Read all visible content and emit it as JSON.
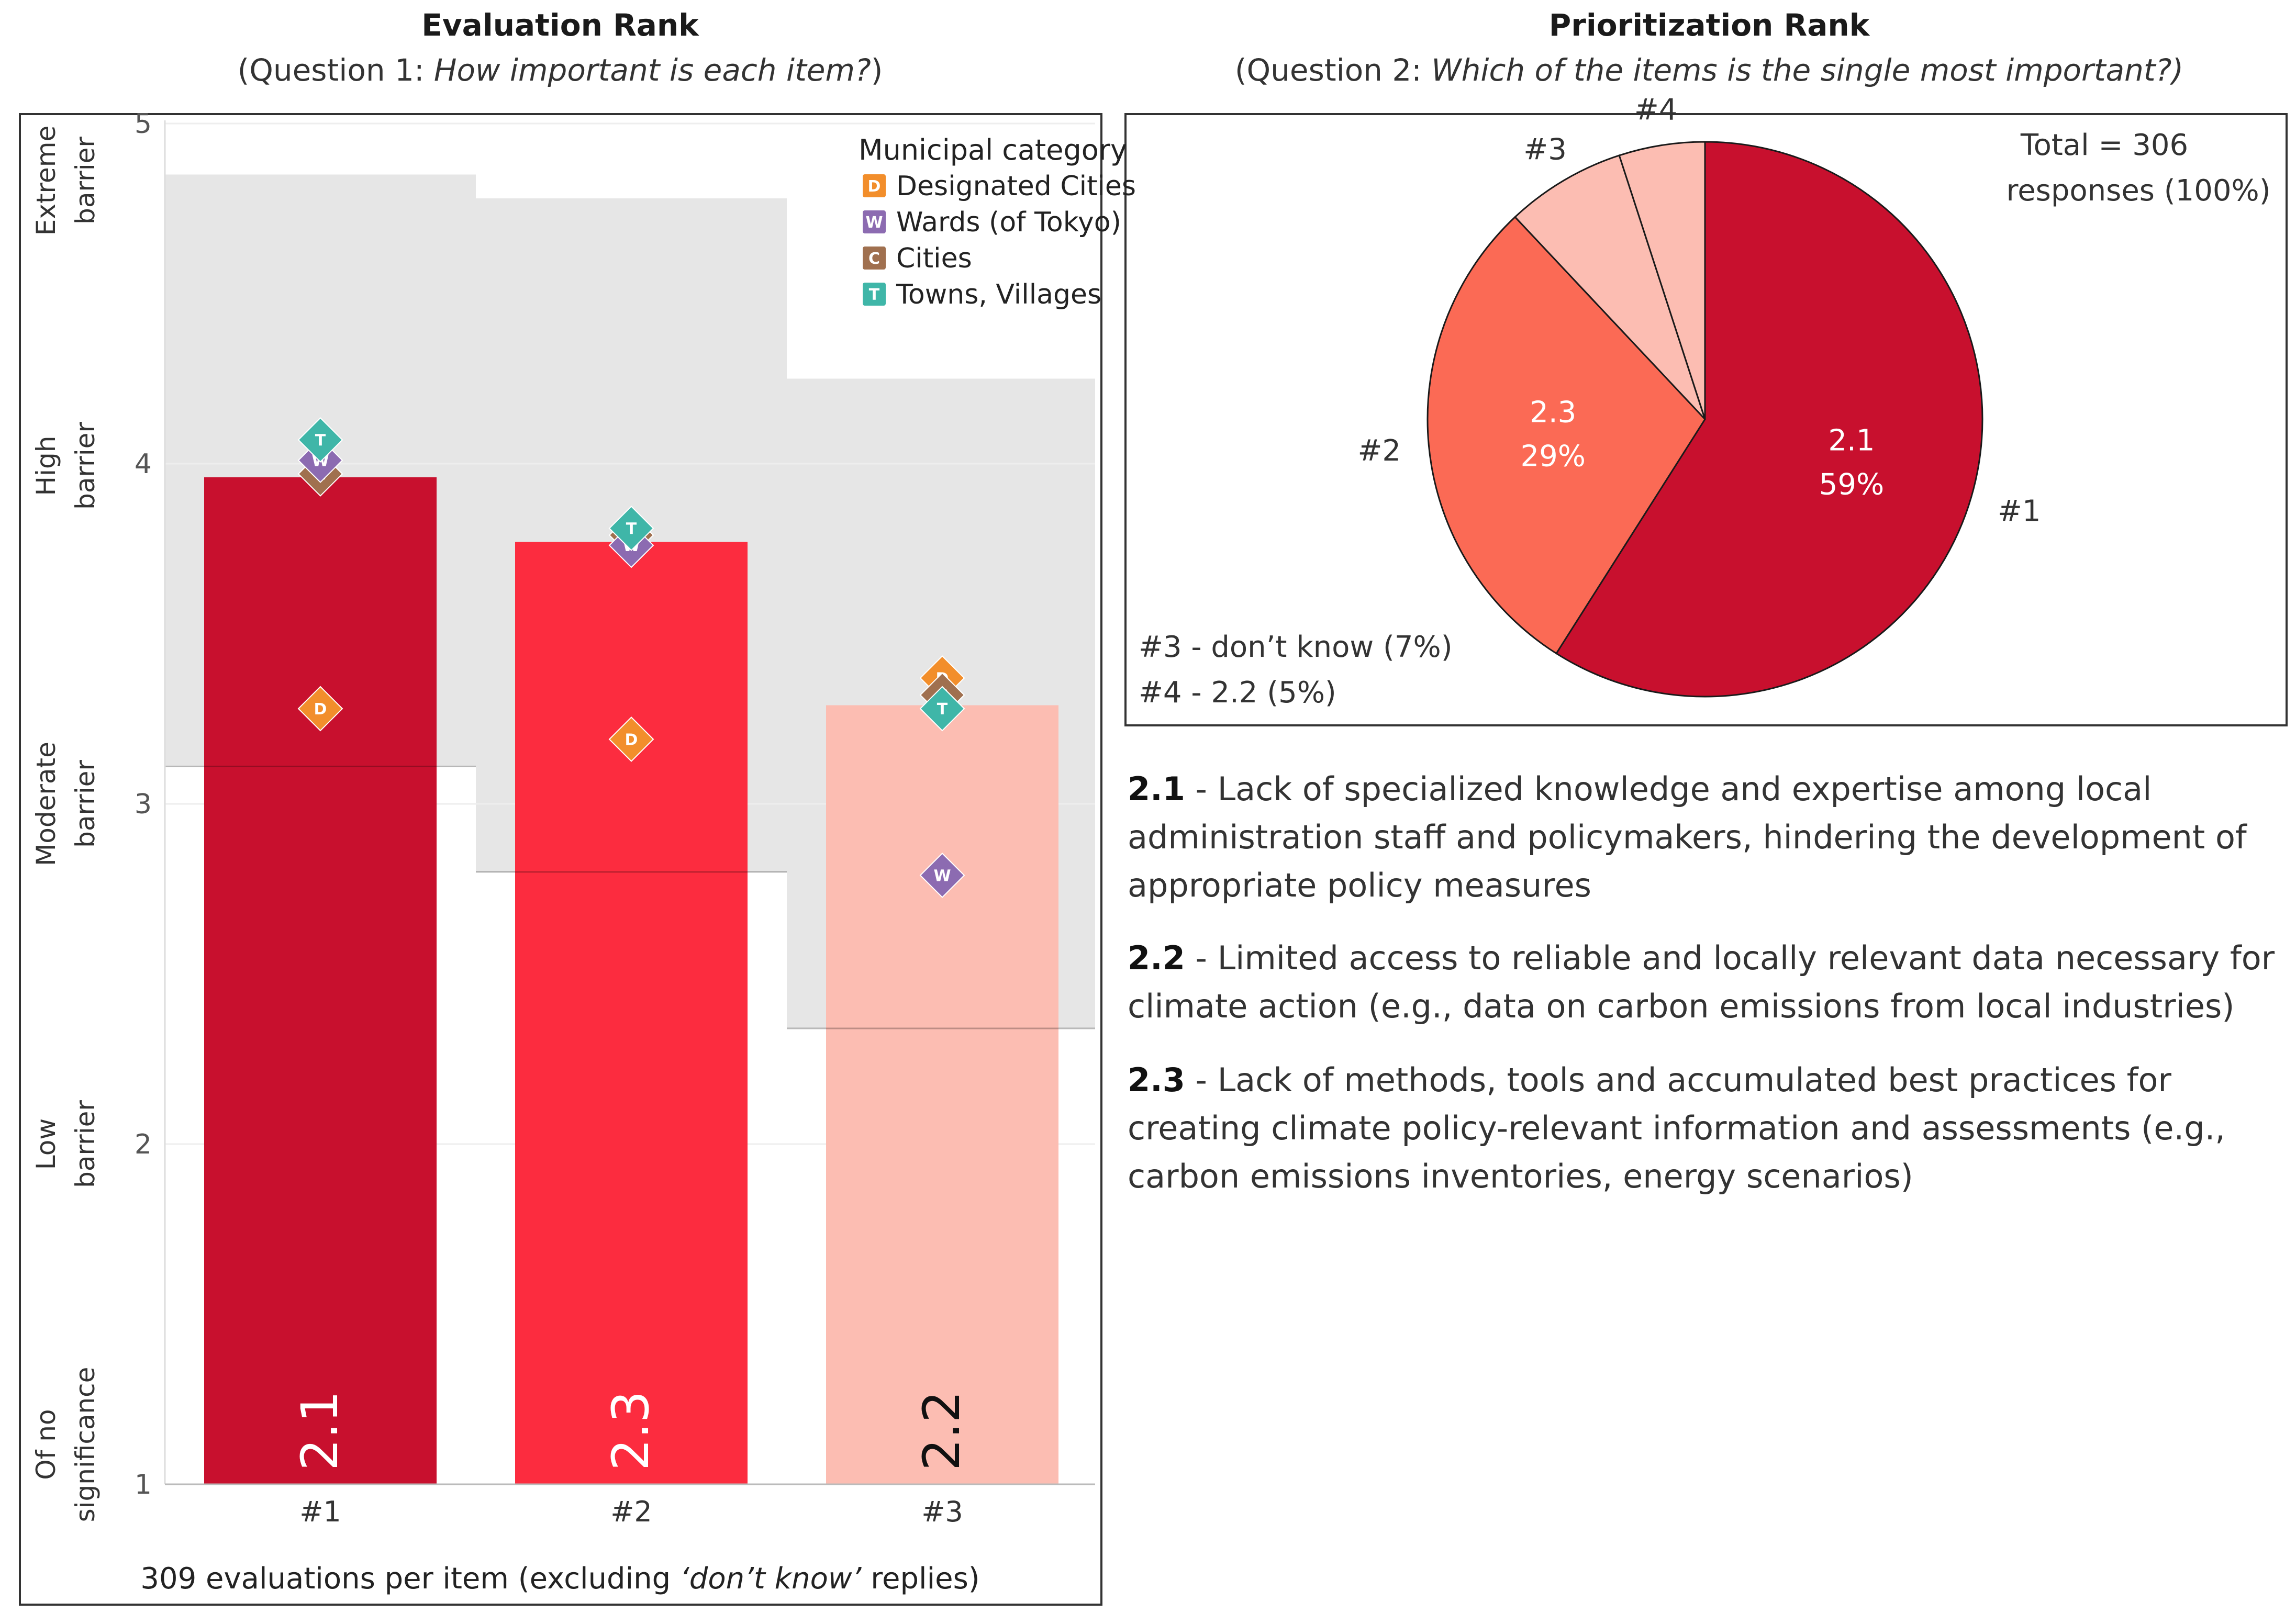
{
  "left": {
    "title": "Evaluation Rank",
    "subtitle_prefix": "(Question 1: ",
    "subtitle_italic": "How important is each item?",
    "subtitle_suffix": ")",
    "footnote_prefix": "309 evaluations per item (excluding ",
    "footnote_italic": "‘don’t know’",
    "footnote_suffix": " replies)"
  },
  "right": {
    "title": "Prioritization Rank",
    "subtitle_prefix": "(Question 2: ",
    "subtitle_italic": "Which of the items is the single most important?)",
    "subtitle_suffix": "",
    "total_line1": "Total = 306",
    "total_line2": "responses (100%)",
    "note_line1": "#3 - don’t know (7%)",
    "note_line2": "#4 - 2.2 (5%)"
  },
  "descriptions": [
    {
      "code": "2.1",
      "text": " - Lack of specialized knowledge and expertise among local administration staff and policymakers, hindering the development of appropriate policy measures"
    },
    {
      "code": "2.2",
      "text": " - Limited access to reliable and locally relevant data necessary for climate action (e.g., data on carbon emissions from local industries)"
    },
    {
      "code": "2.3",
      "text": " - Lack of methods, tools and accumulated best practices for creating climate policy-relevant information and assessments (e.g., carbon emissions inventories, energy scenarios)"
    }
  ],
  "chart_data": [
    {
      "type": "bar",
      "title": "Evaluation Rank",
      "categories": [
        "#1",
        "#2",
        "#3"
      ],
      "bar_labels": [
        "2.1",
        "2.3",
        "2.2"
      ],
      "values": [
        3.96,
        3.77,
        3.29
      ],
      "bar_colors": [
        "#c8102e",
        "#fc2c3f",
        "#fcbdb2"
      ],
      "bar_label_colors": [
        "#ffffff",
        "#ffffff",
        "#111111"
      ],
      "range_low": [
        3.11,
        2.8,
        2.34
      ],
      "range_high": [
        4.85,
        4.78,
        4.25
      ],
      "ylim": [
        1,
        5
      ],
      "yticks": [
        1,
        2,
        3,
        4,
        5
      ],
      "y_category_labels": [
        {
          "lines": [
            "Of no",
            "significance"
          ],
          "at": 1
        },
        {
          "lines": [
            "Low",
            "barrier"
          ],
          "at": 2
        },
        {
          "lines": [
            "Moderate",
            "barrier"
          ],
          "at": 3
        },
        {
          "lines": [
            "High",
            "barrier"
          ],
          "at": 4
        },
        {
          "lines": [
            "Extreme",
            "barrier"
          ],
          "at": 5
        }
      ],
      "legend": {
        "title": "Municipal category",
        "items": [
          {
            "letter": "D",
            "label": "Designated Cities",
            "color": "#f28e2b"
          },
          {
            "letter": "W",
            "label": "Wards (of Tokyo)",
            "color": "#8c6bb1"
          },
          {
            "letter": "C",
            "label": "Cities",
            "color": "#a0704f"
          },
          {
            "letter": "T",
            "label": "Towns, Villages",
            "color": "#3fb6a8"
          }
        ]
      },
      "markers": [
        {
          "cat": 0,
          "letter": "C",
          "value": 3.97
        },
        {
          "cat": 0,
          "letter": "W",
          "value": 4.01
        },
        {
          "cat": 0,
          "letter": "T",
          "value": 4.07
        },
        {
          "cat": 0,
          "letter": "D",
          "value": 3.28
        },
        {
          "cat": 1,
          "letter": "T",
          "value": 3.81
        },
        {
          "cat": 1,
          "letter": "W",
          "value": 3.76
        },
        {
          "cat": 1,
          "letter": "C",
          "value": 3.79
        },
        {
          "cat": 1,
          "letter": "D",
          "value": 3.19
        },
        {
          "cat": 2,
          "letter": "T",
          "value": 3.28
        },
        {
          "cat": 2,
          "letter": "C",
          "value": 3.32
        },
        {
          "cat": 2,
          "letter": "D",
          "value": 3.37
        },
        {
          "cat": 2,
          "letter": "W",
          "value": 2.79
        }
      ]
    },
    {
      "type": "pie",
      "title": "Prioritization Rank",
      "slices": [
        {
          "rank": "#1",
          "label": "2.1",
          "pct": 59,
          "pct_text": "59%",
          "color": "#c8102e"
        },
        {
          "rank": "#2",
          "label": "2.3",
          "pct": 29,
          "pct_text": "29%",
          "color": "#fb6a55"
        },
        {
          "rank": "#3",
          "label": "don’t know",
          "pct": 7,
          "pct_text": "7%",
          "color": "#fcbdb2"
        },
        {
          "rank": "#4",
          "label": "2.2",
          "pct": 5,
          "pct_text": "5%",
          "color": "#fcbdb2"
        }
      ]
    }
  ]
}
